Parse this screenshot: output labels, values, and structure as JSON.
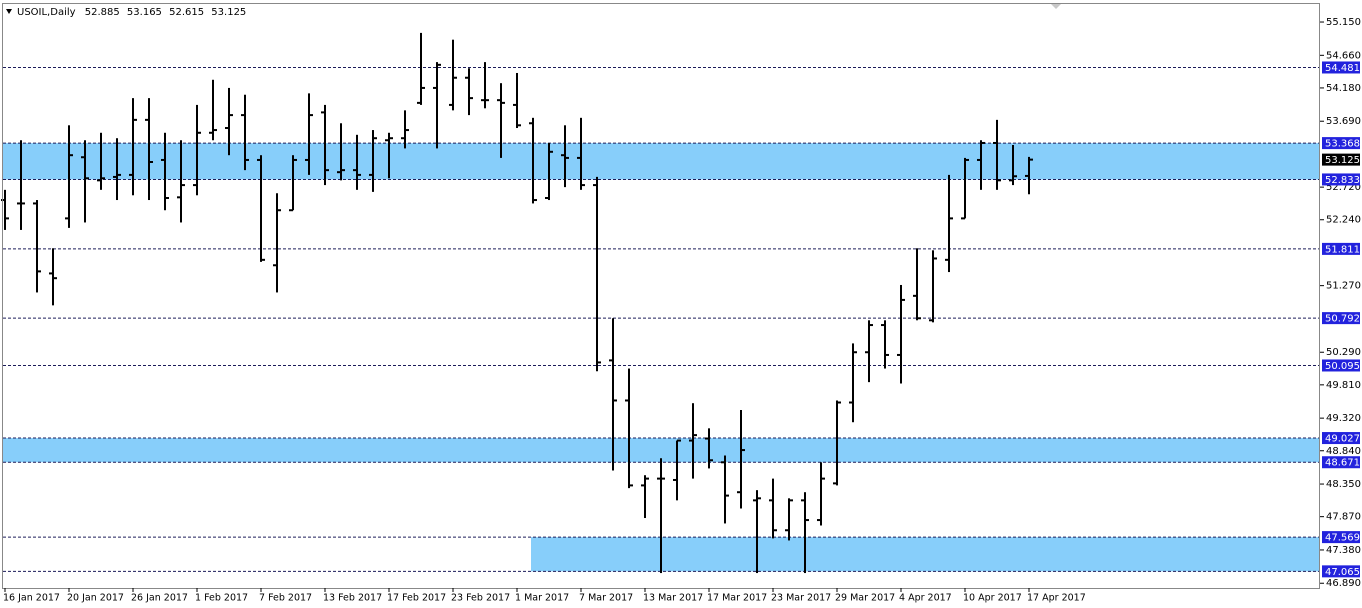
{
  "chart_data": {
    "type": "ohlc",
    "symbol": "USOIL,Daily",
    "categories": [
      "16 Jan 2017",
      null,
      null,
      null,
      "20 Jan 2017",
      null,
      null,
      null,
      "26 Jan 2017",
      null,
      null,
      null,
      "1 Feb 2017",
      null,
      null,
      null,
      "7 Feb 2017",
      null,
      null,
      null,
      "13 Feb 2017",
      null,
      null,
      null,
      "17 Feb 2017",
      null,
      null,
      null,
      "23 Feb 2017",
      null,
      null,
      null,
      "1 Mar 2017",
      null,
      null,
      null,
      "7 Mar 2017",
      null,
      null,
      null,
      "13 Mar 2017",
      null,
      null,
      null,
      "17 Mar 2017",
      null,
      null,
      null,
      "23 Mar 2017",
      null,
      null,
      null,
      "29 Mar 2017",
      null,
      null,
      null,
      "4 Apr 2017",
      null,
      null,
      null,
      "10 Apr 2017",
      null,
      null,
      null,
      "17 Apr 2017"
    ],
    "open": [
      52.53,
      52.48,
      52.48,
      51.45,
      52.26,
      53.16,
      52.82,
      52.87,
      52.9,
      53.71,
      53.12,
      52.57,
      52.75,
      53.52,
      53.59,
      53.78,
      53.12,
      51.57,
      52.38,
      53.12,
      53.82,
      52.94,
      52.97,
      52.9,
      53.41,
      53.44,
      53.96,
      54.18,
      53.93,
      54.33,
      54.0,
      54.0,
      53.93,
      53.66,
      52.56,
      53.19,
      53.15,
      52.75,
      50.17,
      49.58,
      48.33,
      48.43,
      48.41,
      48.99,
      49.02,
      48.67,
      48.23,
      48.11,
      48.11,
      47.67,
      48.11,
      47.82,
      48.36,
      49.55,
      50.29,
      50.69,
      50.25,
      51.12,
      50.76,
      51.65,
      52.26,
      53.12,
      53.37,
      52.82,
      52.885
    ],
    "high": [
      52.68,
      53.41,
      52.53,
      51.82,
      53.63,
      53.41,
      53.52,
      53.44,
      54.03,
      54.03,
      53.52,
      53.41,
      53.93,
      54.3,
      54.18,
      54.08,
      53.19,
      52.63,
      53.19,
      54.1,
      53.93,
      53.66,
      53.49,
      53.56,
      53.52,
      53.85,
      54.99,
      54.56,
      54.89,
      54.47,
      54.56,
      54.25,
      54.4,
      53.74,
      53.37,
      53.63,
      53.74,
      52.87,
      50.79,
      50.05,
      48.48,
      48.73,
      48.99,
      49.54,
      49.17,
      48.77,
      49.44,
      48.26,
      48.43,
      48.14,
      48.23,
      48.67,
      49.58,
      50.42,
      50.76,
      50.76,
      51.28,
      51.82,
      51.79,
      52.9,
      53.15,
      53.41,
      53.71,
      53.34,
      53.165
    ],
    "low": [
      52.09,
      52.09,
      51.17,
      50.98,
      52.12,
      52.2,
      52.68,
      52.53,
      52.6,
      52.53,
      52.38,
      52.2,
      52.6,
      53.41,
      53.19,
      52.97,
      51.62,
      51.17,
      52.38,
      52.9,
      52.75,
      52.82,
      52.68,
      52.65,
      52.85,
      53.29,
      53.93,
      53.29,
      53.85,
      53.78,
      53.88,
      53.15,
      53.59,
      52.48,
      52.53,
      52.72,
      52.68,
      50.01,
      48.55,
      48.29,
      47.85,
      47.04,
      48.11,
      48.43,
      48.58,
      47.77,
      47.99,
      47.04,
      47.55,
      47.52,
      47.04,
      47.74,
      48.33,
      49.26,
      49.85,
      50.05,
      49.83,
      50.76,
      50.73,
      51.47,
      52.26,
      52.68,
      52.68,
      52.75,
      52.615
    ],
    "close": [
      52.26,
      52.48,
      51.48,
      51.38,
      53.19,
      52.85,
      52.85,
      52.9,
      53.71,
      53.09,
      52.56,
      52.75,
      53.52,
      53.56,
      53.78,
      53.12,
      51.65,
      52.38,
      53.12,
      53.78,
      52.97,
      52.97,
      52.9,
      53.44,
      53.44,
      53.56,
      54.18,
      54.52,
      54.33,
      54.03,
      54.0,
      53.96,
      53.63,
      52.53,
      53.24,
      53.15,
      52.75,
      50.14,
      49.58,
      48.33,
      48.43,
      48.43,
      48.99,
      49.07,
      48.7,
      48.18,
      48.85,
      48.14,
      47.67,
      48.11,
      47.82,
      48.43,
      49.55,
      50.29,
      50.69,
      50.25,
      51.06,
      50.79,
      51.67,
      52.26,
      53.12,
      53.37,
      52.82,
      52.88,
      53.125
    ],
    "color": "#000000",
    "ylim": [
      46.82,
      55.43
    ],
    "yticks": [
      {
        "value": 55.15,
        "label": "55.150"
      },
      {
        "value": 54.66,
        "label": "54.660"
      },
      {
        "value": 54.18,
        "label": "54.180"
      },
      {
        "value": 53.69,
        "label": "53.690"
      },
      {
        "value": 52.72,
        "label": "52.720"
      },
      {
        "value": 52.24,
        "label": "52.240"
      },
      {
        "value": 51.27,
        "label": "51.270"
      },
      {
        "value": 50.29,
        "label": "50.290"
      },
      {
        "value": 49.81,
        "label": "49.810"
      },
      {
        "value": 49.32,
        "label": "49.320"
      },
      {
        "value": 48.84,
        "label": "48.840"
      },
      {
        "value": 48.35,
        "label": "48.350"
      },
      {
        "value": 47.87,
        "label": "47.870"
      },
      {
        "value": 47.38,
        "label": "47.380"
      },
      {
        "value": 46.89,
        "label": "46.890"
      }
    ],
    "levels": [
      54.481,
      51.811,
      50.792,
      50.095
    ],
    "zones": [
      {
        "from": 52.833,
        "to": 53.368
      },
      {
        "from": 48.671,
        "to": 49.027
      },
      {
        "from": 47.065,
        "to": 47.569,
        "start": "1 Mar 2017"
      }
    ],
    "zone_color": "#87cefa",
    "level_color": "#1c1c5a",
    "label_color": "#2222dd",
    "price_label_color": "#000000",
    "grid": false
  }
}
